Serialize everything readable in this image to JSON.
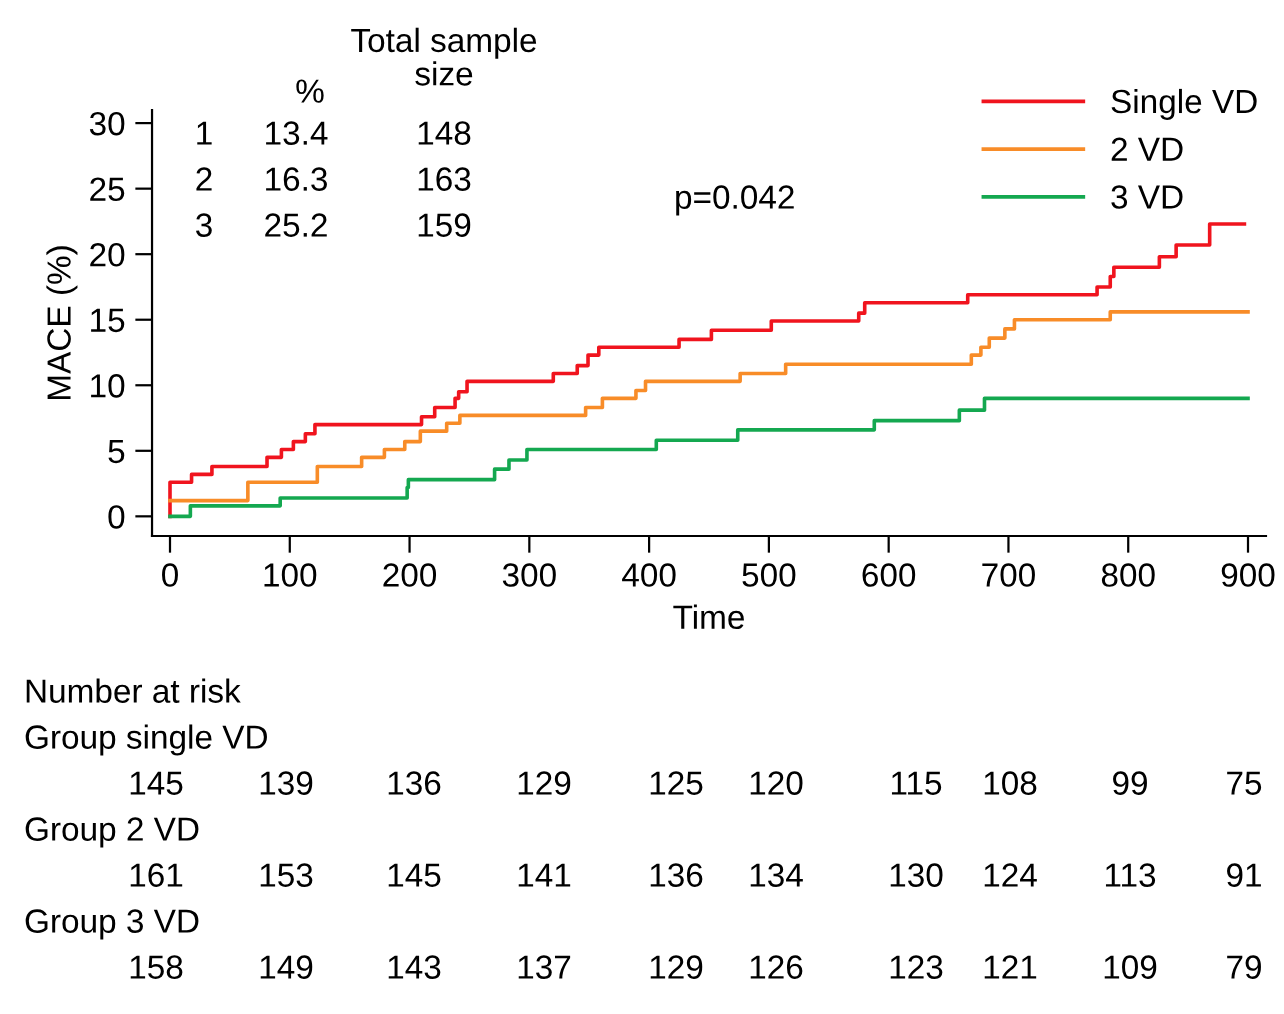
{
  "chart_data": {
    "type": "step",
    "xlabel": "Time",
    "ylabel": "MACE (%)",
    "xlim": [
      -15,
      915
    ],
    "ylim": [
      -1.5,
      31
    ],
    "xticks": [
      0,
      100,
      200,
      300,
      400,
      500,
      600,
      700,
      800,
      900
    ],
    "yticks": [
      0,
      5,
      10,
      15,
      20,
      25,
      30
    ],
    "grid": false,
    "legend": "top right",
    "line_style": "solid",
    "marker": "none",
    "series": [
      {
        "name": "Single VD",
        "color": "#f0141e",
        "x": [
          0,
          0,
          18,
          35,
          81,
          93,
          103,
          113,
          121,
          210,
          221,
          238,
          241,
          248,
          320,
          340,
          349,
          358,
          425,
          452,
          502,
          575,
          580,
          666,
          774,
          785,
          788,
          826,
          840,
          868,
          897
        ],
        "values": [
          0,
          2.6,
          3.2,
          3.8,
          4.5,
          5.1,
          5.7,
          6.3,
          7.0,
          7.6,
          8.3,
          9.0,
          9.5,
          10.3,
          10.9,
          11.5,
          12.3,
          12.9,
          13.5,
          14.2,
          14.9,
          15.5,
          16.3,
          16.9,
          17.5,
          18.3,
          19.0,
          19.8,
          20.7,
          22.3,
          22.3
        ]
      },
      {
        "name": "2 VD",
        "color": "#f88c28",
        "x": [
          0,
          65,
          123,
          160,
          179,
          196,
          209,
          231,
          242,
          347,
          361,
          389,
          397,
          476,
          514,
          669,
          677,
          684,
          697,
          705,
          785,
          900
        ],
        "values": [
          1.2,
          2.6,
          3.8,
          4.5,
          5.1,
          5.7,
          6.5,
          7.1,
          7.7,
          8.3,
          9.0,
          9.6,
          10.3,
          10.9,
          11.6,
          12.3,
          12.9,
          13.6,
          14.3,
          15.0,
          15.6,
          15.6
        ]
      },
      {
        "name": "3 VD",
        "color": "#14a850",
        "x": [
          0,
          17,
          92,
          198,
          199,
          271,
          283,
          298,
          406,
          474,
          588,
          659,
          680,
          900
        ],
        "values": [
          0,
          0.8,
          1.4,
          2.2,
          2.8,
          3.6,
          4.3,
          5.1,
          5.8,
          6.6,
          7.3,
          8.1,
          9.0,
          9.0
        ]
      }
    ],
    "annotations": [
      "Total sample\nsize",
      "%",
      "1 13.4 148",
      "2 16.3 163",
      "3 25.2 159",
      "p=0.042",
      "Number at risk",
      "Group single VD",
      "145 139 136 129 125 120 115 108 99 75",
      "Group 2 VD",
      "161 153 145 141 136 134 130 124 113 91",
      "Group 3 VD",
      "158 149 143 137 129 126 123 121 109 79"
    ]
  }
}
